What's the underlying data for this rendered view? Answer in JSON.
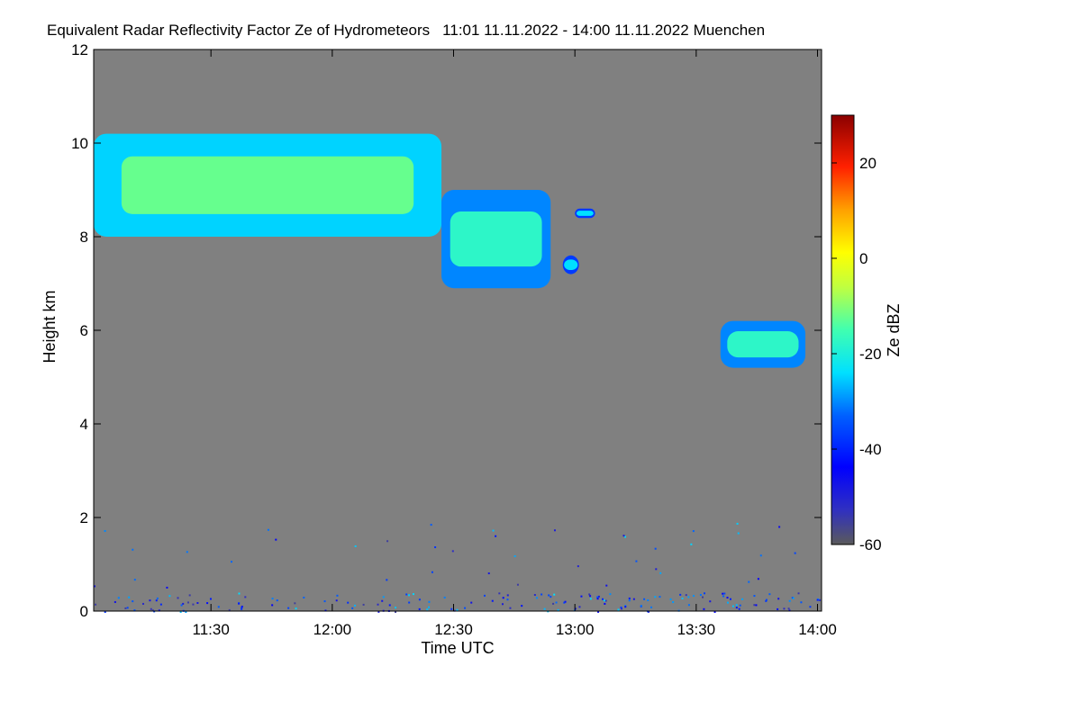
{
  "chart_data": {
    "type": "heatmap",
    "title": "Equivalent Radar Reflectivity Factor Ze of Hydrometeors",
    "time_range_text": "11:01 11.11.2022 - 14:00 11.11.2022",
    "station": "Muenchen",
    "xlabel": "Time UTC",
    "ylabel": "Height km",
    "x_range_minutes_utc": [
      661,
      841
    ],
    "x_ticks": [
      {
        "label": "11:30",
        "minute": 690
      },
      {
        "label": "12:00",
        "minute": 720
      },
      {
        "label": "12:30",
        "minute": 750
      },
      {
        "label": "13:00",
        "minute": 780
      },
      {
        "label": "13:30",
        "minute": 810
      },
      {
        "label": "14:00",
        "minute": 840
      }
    ],
    "ylim": [
      0,
      12
    ],
    "y_ticks": [
      0,
      2,
      4,
      6,
      8,
      10,
      12
    ],
    "colorbar": {
      "label": "Ze dBZ",
      "range": [
        -60,
        30
      ],
      "ticks": [
        20,
        0,
        -20,
        -40,
        -60
      ]
    },
    "background_color": "#808080",
    "regions": [
      {
        "name": "upper-cloud-main",
        "t_start": 661,
        "t_end": 747,
        "base_km": 8.0,
        "top_km": 10.2,
        "ze_dbz": -12
      },
      {
        "name": "upper-cloud-tail",
        "t_start": 747,
        "t_end": 774,
        "base_km": 6.9,
        "top_km": 9.0,
        "ze_dbz": -18
      },
      {
        "name": "isolated-cell-upper",
        "t_start": 777,
        "t_end": 781,
        "base_km": 7.2,
        "top_km": 7.6,
        "ze_dbz": -25
      },
      {
        "name": "isolated-cell-high",
        "t_start": 780,
        "t_end": 785,
        "base_km": 8.4,
        "top_km": 8.6,
        "ze_dbz": -25
      },
      {
        "name": "mid-level-cloud",
        "t_start": 816,
        "t_end": 837,
        "base_km": 5.2,
        "top_km": 6.2,
        "ze_dbz": -18
      }
    ]
  }
}
